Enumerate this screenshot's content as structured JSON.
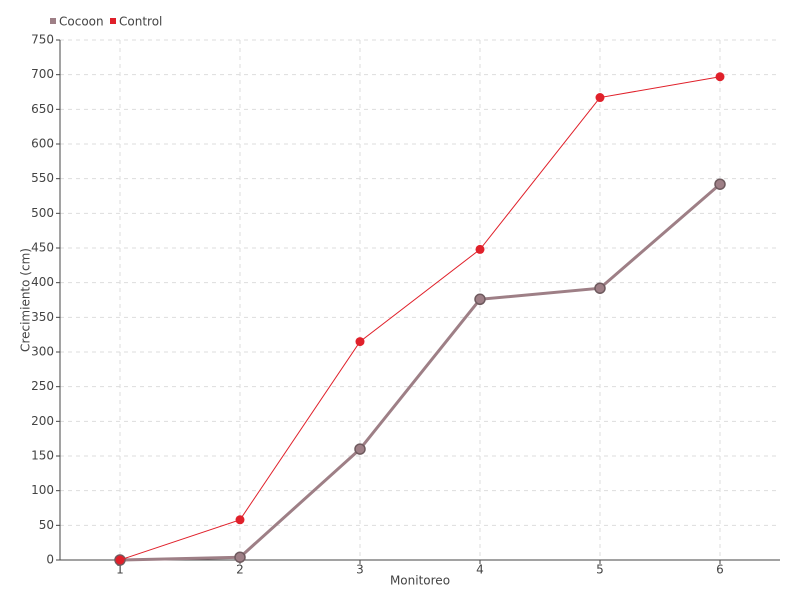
{
  "chart_data": {
    "type": "line",
    "x_label": "Monitoreo",
    "y_label": "Crecimiento (cm)",
    "x": [
      1,
      2,
      3,
      4,
      5,
      6
    ],
    "series": [
      {
        "name": "Cocoon",
        "color": "#9e7f86",
        "values": [
          0,
          4,
          160,
          376,
          392,
          542
        ]
      },
      {
        "name": "Control",
        "color": "#e0202a",
        "values": [
          0,
          58,
          315,
          448,
          667,
          697
        ]
      }
    ],
    "xlim": [
      0.5,
      6.5
    ],
    "xticks": [
      1,
      2,
      3,
      4,
      5,
      6
    ],
    "ylim": [
      0,
      750
    ],
    "yticks": [
      0,
      50,
      100,
      150,
      200,
      250,
      300,
      350,
      400,
      450,
      500,
      550,
      600,
      650,
      700,
      750
    ],
    "grid": true,
    "legend": "top-left"
  }
}
